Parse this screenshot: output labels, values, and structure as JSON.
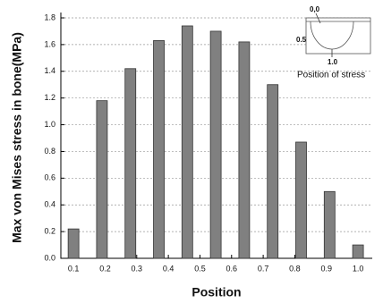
{
  "chart_data": {
    "type": "bar",
    "x_label": "Position",
    "y_label": "Max von Mises stress in bone(MPa)",
    "x": [
      0.1,
      0.19,
      0.28,
      0.37,
      0.46,
      0.55,
      0.64,
      0.73,
      0.82,
      0.91,
      1.0
    ],
    "values": [
      0.22,
      1.18,
      1.42,
      1.63,
      1.74,
      1.7,
      1.62,
      1.3,
      0.87,
      0.5,
      0.1
    ],
    "color": "#808080",
    "xlim": [
      0.06,
      1.045
    ],
    "xticks": [
      0.1,
      0.2,
      0.3,
      0.4,
      0.5,
      0.6,
      0.7,
      0.8,
      0.9,
      {
        "value": 1.0,
        "label": "1.0"
      }
    ],
    "ylim": [
      0,
      1.8
    ],
    "yticks": [
      {
        "value": 0,
        "label": "0.0"
      },
      0.2,
      0.4,
      0.6,
      0.8,
      {
        "value": 1.0,
        "label": "1.0"
      },
      1.2,
      1.4,
      1.6,
      1.8
    ],
    "grid": true,
    "inset": {
      "top_label": "0,0",
      "middle_label": "0.5",
      "bottom_label": "1.0",
      "caption": "Position of stress"
    }
  }
}
